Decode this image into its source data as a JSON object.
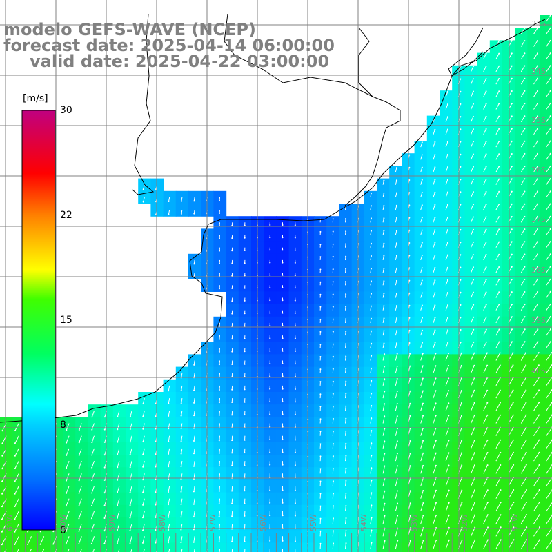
{
  "titles": {
    "model": "modelo GEFS-WAVE (NCEP)",
    "forecast": "forecast date: 2025-04-14 06:00:00",
    "valid": "valid date: 2025-04-22 03:00:00"
  },
  "colorbar": {
    "unit": "[m/s]",
    "ticks": [
      "30",
      "22",
      "15",
      "8",
      "0"
    ],
    "colors": [
      "#0000ff",
      "#0090ff",
      "#00ffff",
      "#00ff40",
      "#00ff00",
      "#ffff00",
      "#ff8000",
      "#ff0000",
      "#d00080"
    ]
  },
  "axes": {
    "lon_labels": [
      "61W",
      "60W",
      "59W",
      "58W",
      "57W",
      "56W",
      "55W",
      "54W",
      "53W",
      "52W",
      "51W"
    ],
    "lat_labels": [
      "33S",
      "34S",
      "35S",
      "36S",
      "37S",
      "38S",
      "39S",
      "40S"
    ]
  },
  "colors": {
    "land": "#ffffff",
    "coast": "#000000",
    "grid": "#808080",
    "arrow": "#ffffff"
  }
}
